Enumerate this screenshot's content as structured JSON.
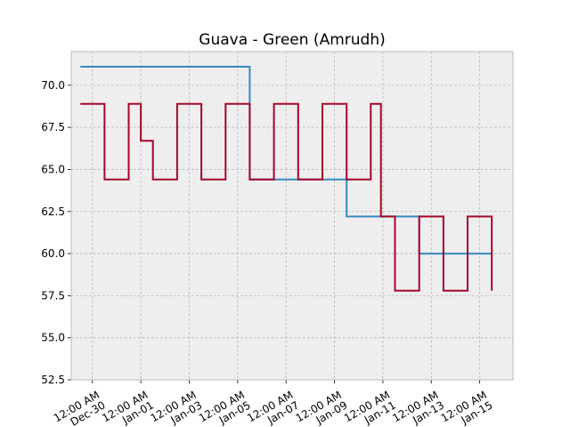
{
  "chart_data": {
    "type": "line",
    "title": "Guava - Green (Amrudh)",
    "xlabel": "",
    "ylabel": "",
    "ylim": [
      52.5,
      72.0
    ],
    "xlim": [
      "2019-12-29T03:00",
      "2020-01-16T09:00"
    ],
    "grid": true,
    "yticks": [
      52.5,
      55.0,
      57.5,
      60.0,
      62.5,
      65.0,
      67.5,
      70.0
    ],
    "ytick_labels": [
      "52.5",
      "55.0",
      "57.5",
      "60.0",
      "62.5",
      "65.0",
      "67.5",
      "70.0"
    ],
    "xticks": [
      "2019-12-30T00:00",
      "2020-01-01T00:00",
      "2020-01-03T00:00",
      "2020-01-05T00:00",
      "2020-01-07T00:00",
      "2020-01-09T00:00",
      "2020-01-11T00:00",
      "2020-01-13T00:00",
      "2020-01-15T00:00"
    ],
    "xtick_labels": [
      "12:00 AM\nDec-30",
      "12:00 AM\nJan-01",
      "12:00 AM\nJan-03",
      "12:00 AM\nJan-05",
      "12:00 AM\nJan-07",
      "12:00 AM\nJan-09",
      "12:00 AM\nJan-11",
      "12:00 AM\nJan-13",
      "12:00 AM\nJan-15"
    ],
    "series": [
      {
        "color": "#348abd",
        "step": true,
        "points": [
          [
            "2019-12-29T12:00",
            71.1
          ],
          [
            "2020-01-05T12:00",
            64.4
          ],
          [
            "2020-01-09T12:00",
            62.2
          ],
          [
            "2020-01-12T12:00",
            60.0
          ],
          [
            "2020-01-15T12:00",
            60.0
          ]
        ]
      },
      {
        "color": "#a60628",
        "step": true,
        "points": [
          [
            "2019-12-29T12:00",
            68.9
          ],
          [
            "2019-12-30T12:00",
            64.4
          ],
          [
            "2019-12-31T12:00",
            68.9
          ],
          [
            "2020-01-01T00:00",
            66.7
          ],
          [
            "2020-01-01T12:00",
            64.4
          ],
          [
            "2020-01-02T12:00",
            68.9
          ],
          [
            "2020-01-03T12:00",
            64.4
          ],
          [
            "2020-01-04T12:00",
            68.9
          ],
          [
            "2020-01-05T12:00",
            64.4
          ],
          [
            "2020-01-06T12:00",
            68.9
          ],
          [
            "2020-01-07T12:00",
            64.4
          ],
          [
            "2020-01-08T12:00",
            68.9
          ],
          [
            "2020-01-09T12:00",
            64.4
          ],
          [
            "2020-01-10T12:00",
            68.9
          ],
          [
            "2020-01-10T22:00",
            62.2
          ],
          [
            "2020-01-11T12:00",
            57.8
          ],
          [
            "2020-01-12T12:00",
            62.2
          ],
          [
            "2020-01-13T12:00",
            57.8
          ],
          [
            "2020-01-14T12:00",
            62.2
          ],
          [
            "2020-01-15T12:00",
            57.8
          ]
        ]
      }
    ]
  }
}
